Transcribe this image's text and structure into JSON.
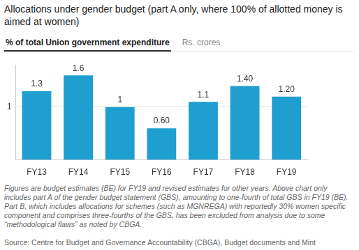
{
  "chart_data": {
    "type": "bar",
    "title": "Allocations under gender budget (part A only, where 100% of allotted money is aimed at women)",
    "tabs": [
      "% of total Union government expenditure",
      "Rs. crores"
    ],
    "categories": [
      "FY13",
      "FY14",
      "FY15",
      "FY16",
      "FY17",
      "FY18",
      "FY19"
    ],
    "values": [
      1.3,
      1.6,
      1,
      0.6,
      1.1,
      1.4,
      1.2
    ],
    "value_labels": [
      "1.3",
      "1.6",
      "1",
      "0.60",
      "1.1",
      "1.40",
      "1.20"
    ],
    "data_labels": true,
    "color": "#1f9fcf",
    "ylim": [
      0,
      1.8
    ],
    "yticks": [
      1
    ],
    "grid": true,
    "note": "Figures are budget estimates (BE) for FY19 and revised estimates for other years. Above chart only includes part A of the gender budget statement (GBS), amounting to one-fourth of total GBS in FY19 (BE). Part B, which includes allocations for schemes (such as MGNREGA) with reportedly 30% women specific component and comprises three-fourths of the GBS, has been excluded from analysis due to some “methodological flaws” as noted by CBGA.",
    "source": "Source: Centre for Budget and Governance Accountability (CBGA), Budget documents and Mint"
  }
}
